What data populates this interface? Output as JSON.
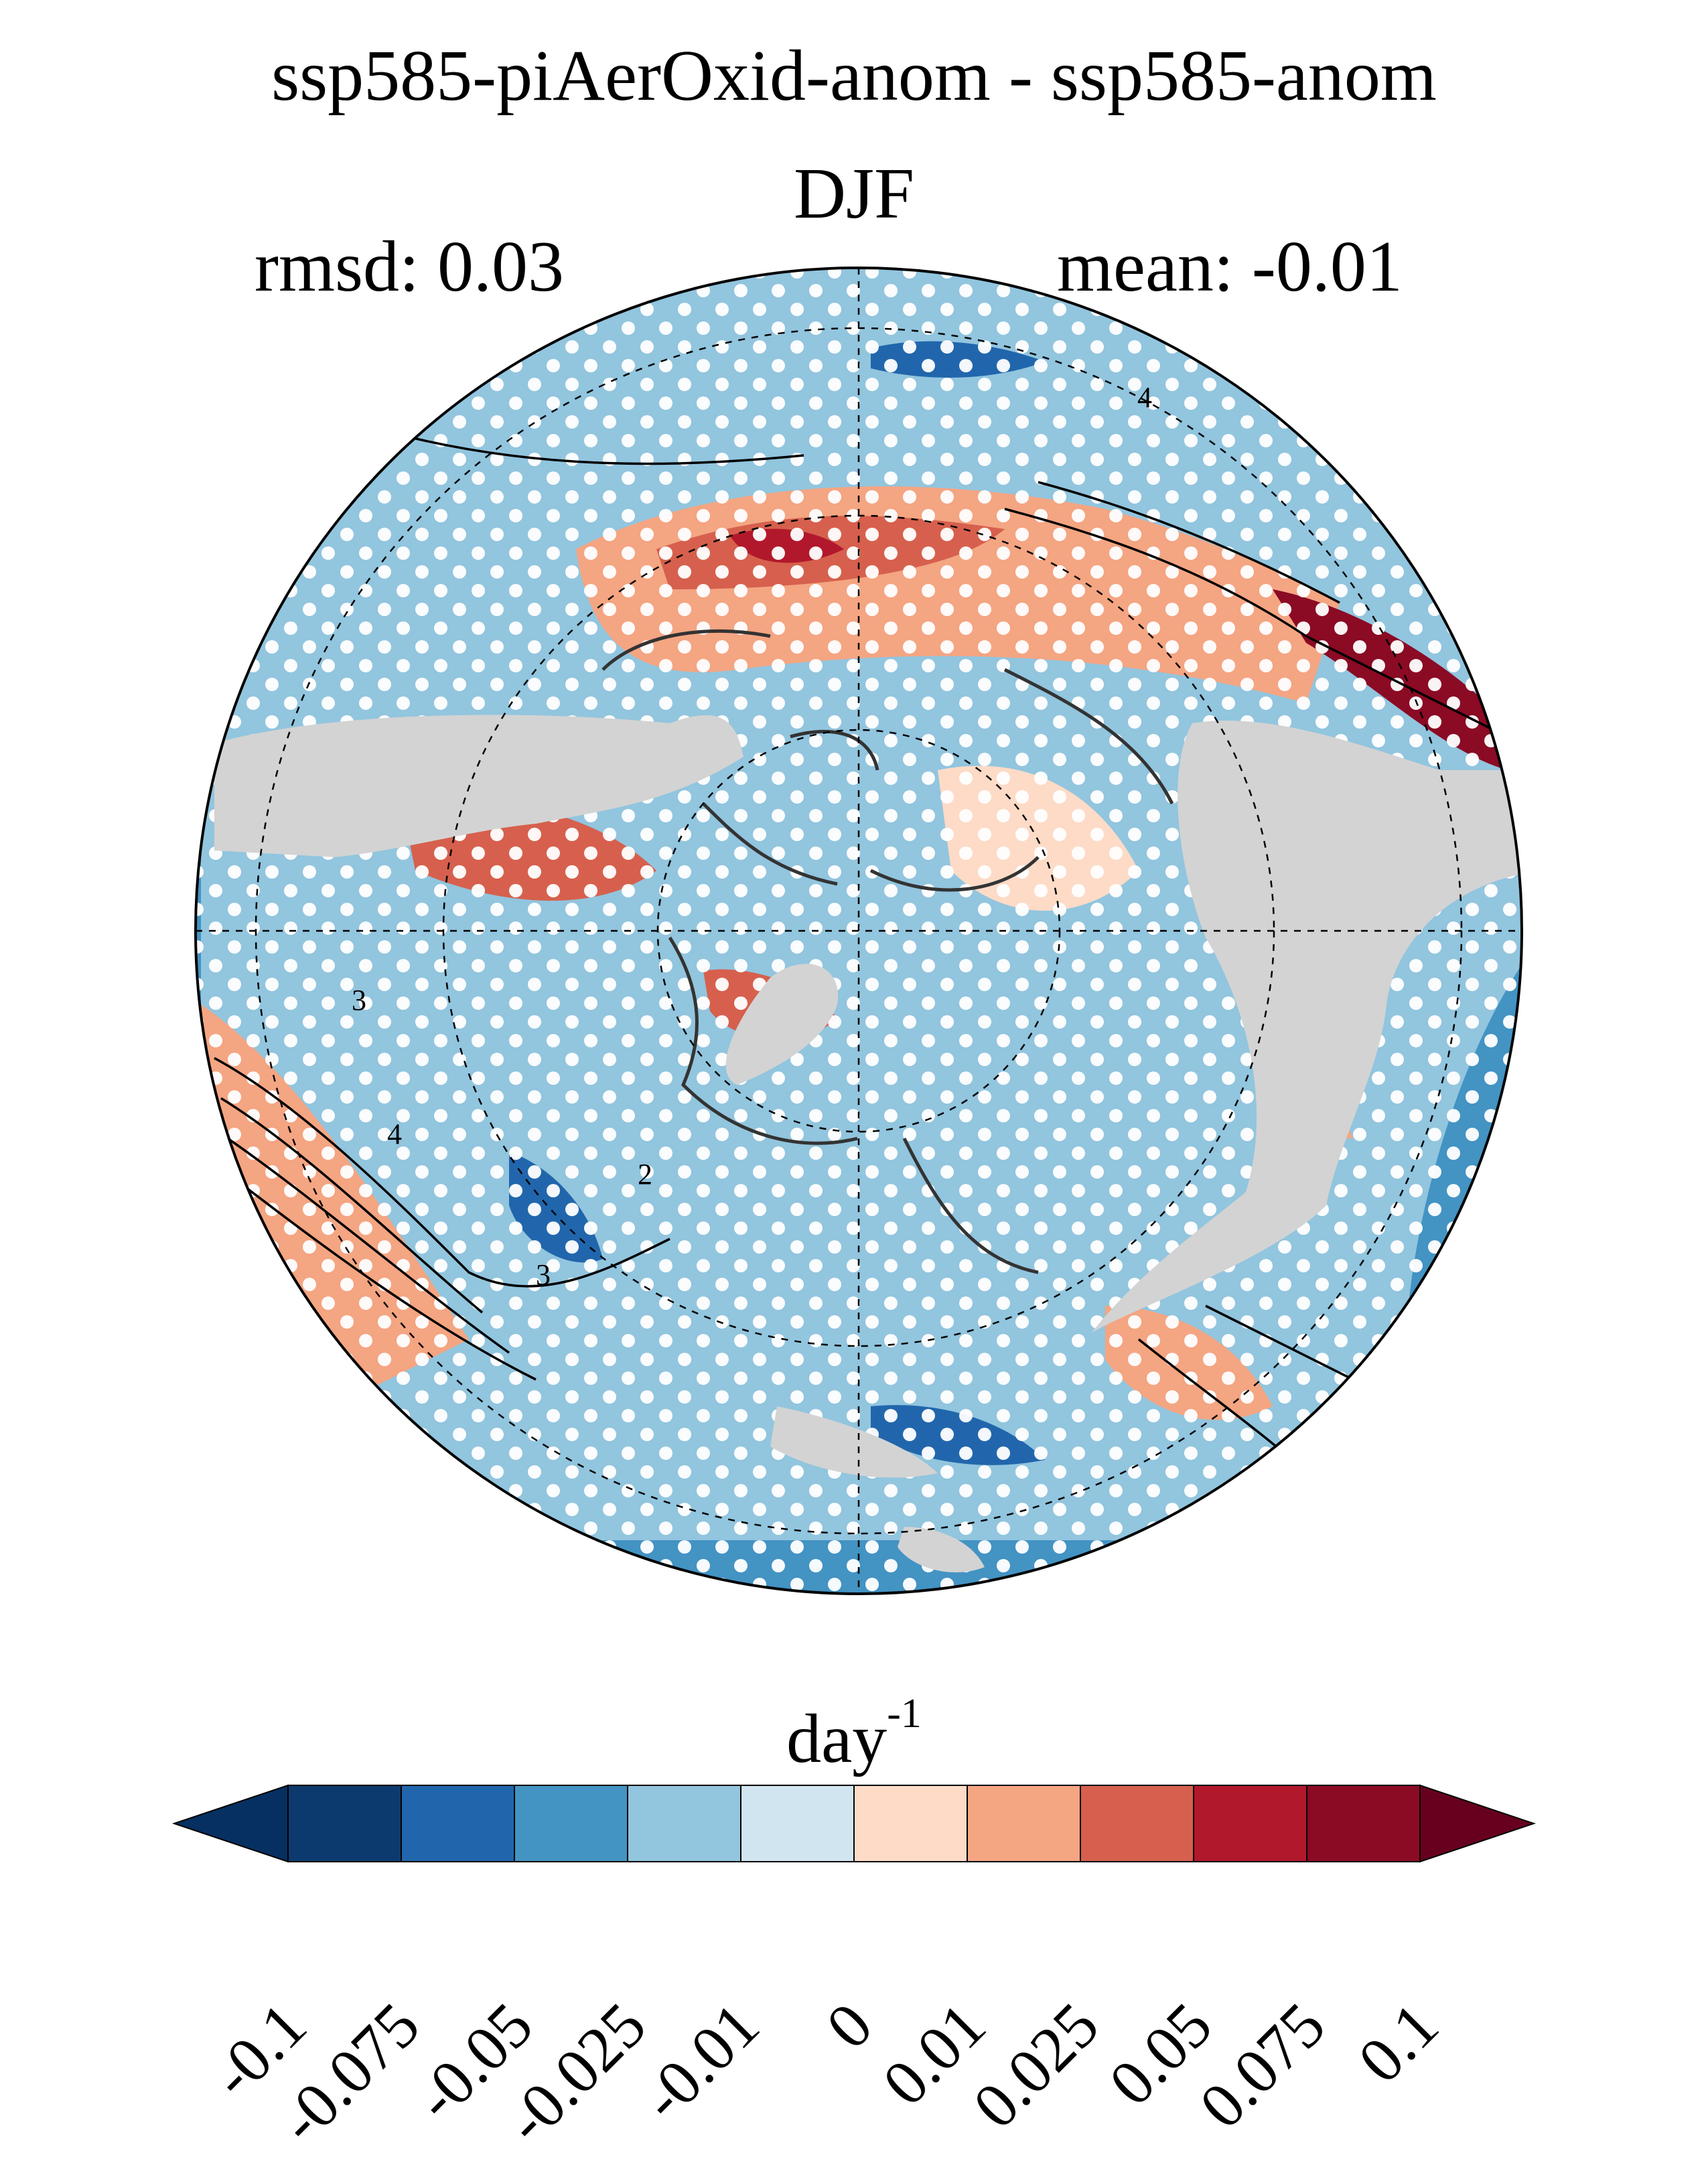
{
  "title": "ssp585-piAerOxid-anom - ssp585-anom",
  "season": "DJF",
  "stats": {
    "rmsd": "rmsd: 0.03",
    "mean": "mean: -0.01"
  },
  "map": {
    "projection": "north-polar-stereographic",
    "land_mask_color": "#d3d3d3",
    "stipple_color": "#ffffff",
    "contour_color": "#000000",
    "contour_labels": [
      "4",
      "4",
      "3",
      "3",
      "2"
    ]
  },
  "colorbar": {
    "units_base": "day",
    "units_exp": "-1",
    "ticks": [
      "-0.1",
      "-0.075",
      "-0.05",
      "-0.025",
      "-0.01",
      "0",
      "0.01",
      "0.025",
      "0.05",
      "0.075",
      "0.1"
    ],
    "colors": [
      "#053061",
      "#0d3a6e",
      "#2166ac",
      "#4393c3",
      "#92c5de",
      "#d1e5f0",
      "#fddbc7",
      "#f4a582",
      "#d6604d",
      "#b2182b",
      "#8b0a24",
      "#67001f"
    ],
    "extend": "both"
  }
}
